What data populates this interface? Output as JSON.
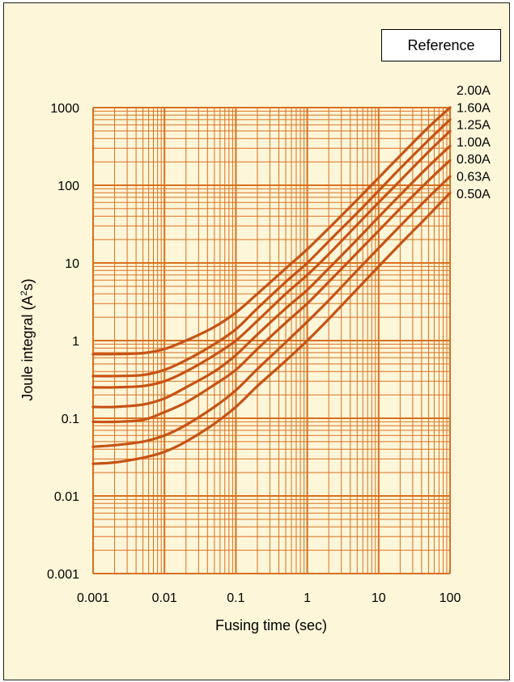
{
  "badge": {
    "label": "Reference"
  },
  "colors": {
    "background": "#fdf6d9",
    "grid": "#d9701e",
    "curve": "#c65314",
    "text": "#000000"
  },
  "chart_data": {
    "type": "line",
    "xlabel": "Fusing time (sec)",
    "ylabel": "Joule integral (A²s)",
    "ylabel_main": "Joule integral (A",
    "ylabel_sup": "2",
    "ylabel_tail": "s)",
    "x_scale": "log",
    "y_scale": "log",
    "xlim": [
      0.001,
      100
    ],
    "ylim": [
      0.001,
      1000
    ],
    "x_ticks": [
      0.001,
      0.01,
      0.1,
      1,
      10,
      100
    ],
    "x_tick_labels": [
      "0.001",
      "0.01",
      "0.1",
      "1",
      "10",
      "100"
    ],
    "y_ticks": [
      0.001,
      0.01,
      0.1,
      1,
      10,
      100,
      1000
    ],
    "y_tick_labels": [
      "0.001",
      "0.01",
      "0.1",
      "1",
      "10",
      "100",
      "1000"
    ],
    "grid": true,
    "legend": "series labels at right edge",
    "x": [
      0.001,
      0.002,
      0.005,
      0.01,
      0.02,
      0.05,
      0.1,
      0.2,
      0.5,
      1,
      2,
      5,
      10,
      20,
      50,
      100
    ],
    "series": [
      {
        "name": "2.00A",
        "values": [
          0.67,
          0.67,
          0.69,
          0.78,
          1.0,
          1.5,
          2.3,
          4.0,
          8.5,
          15.0,
          28,
          65,
          125,
          240,
          560,
          1000
        ]
      },
      {
        "name": "1.60A",
        "values": [
          0.35,
          0.35,
          0.36,
          0.42,
          0.56,
          0.9,
          1.4,
          2.6,
          5.7,
          10.0,
          19,
          44,
          85,
          165,
          380,
          700
        ]
      },
      {
        "name": "1.25A",
        "values": [
          0.25,
          0.25,
          0.26,
          0.3,
          0.4,
          0.65,
          1.0,
          1.8,
          4.0,
          7.0,
          13,
          31,
          60,
          115,
          270,
          500
        ]
      },
      {
        "name": "1.00A",
        "values": [
          0.14,
          0.14,
          0.15,
          0.18,
          0.25,
          0.4,
          0.65,
          1.2,
          2.6,
          4.5,
          8.5,
          20,
          39,
          75,
          175,
          320
        ]
      },
      {
        "name": "0.80A",
        "values": [
          0.09,
          0.09,
          0.095,
          0.12,
          0.16,
          0.27,
          0.42,
          0.78,
          1.7,
          3.0,
          5.7,
          13.5,
          26,
          50,
          115,
          210
        ]
      },
      {
        "name": "0.63A",
        "values": [
          0.043,
          0.045,
          0.05,
          0.06,
          0.082,
          0.14,
          0.23,
          0.43,
          0.95,
          1.75,
          3.3,
          8.0,
          15.5,
          30,
          70,
          130
        ]
      },
      {
        "name": "0.50A",
        "values": [
          0.026,
          0.027,
          0.031,
          0.037,
          0.05,
          0.085,
          0.14,
          0.26,
          0.55,
          1.0,
          1.9,
          4.6,
          9.0,
          17.5,
          41,
          80
        ]
      }
    ]
  }
}
